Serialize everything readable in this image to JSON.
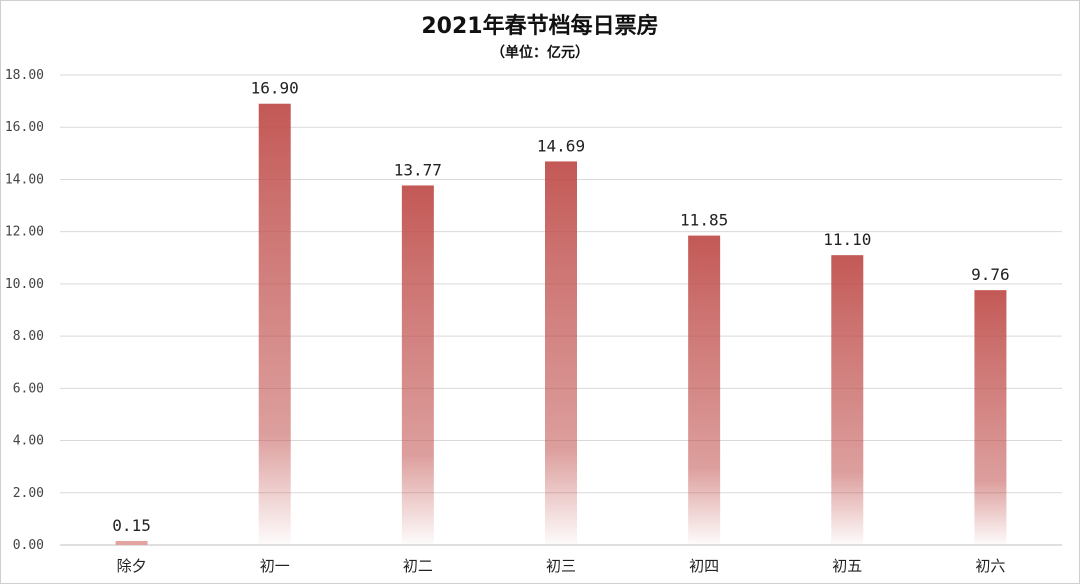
{
  "chart_data": {
    "type": "bar",
    "title": "2021年春节档每日票房",
    "subtitle": "（单位：亿元）",
    "categories": [
      "除夕",
      "初一",
      "初二",
      "初三",
      "初四",
      "初五",
      "初六"
    ],
    "values": [
      0.15,
      16.9,
      13.77,
      14.69,
      11.85,
      11.1,
      9.76
    ],
    "data_labels": [
      "0.15",
      "16.90",
      "13.77",
      "14.69",
      "11.85",
      "11.10",
      "9.76"
    ],
    "yticks": [
      "0.00",
      "2.00",
      "4.00",
      "6.00",
      "8.00",
      "10.00",
      "12.00",
      "14.00",
      "16.00",
      "18.00"
    ],
    "ylim": [
      0,
      18
    ],
    "grid": true,
    "bar_color": "#c0504d"
  }
}
